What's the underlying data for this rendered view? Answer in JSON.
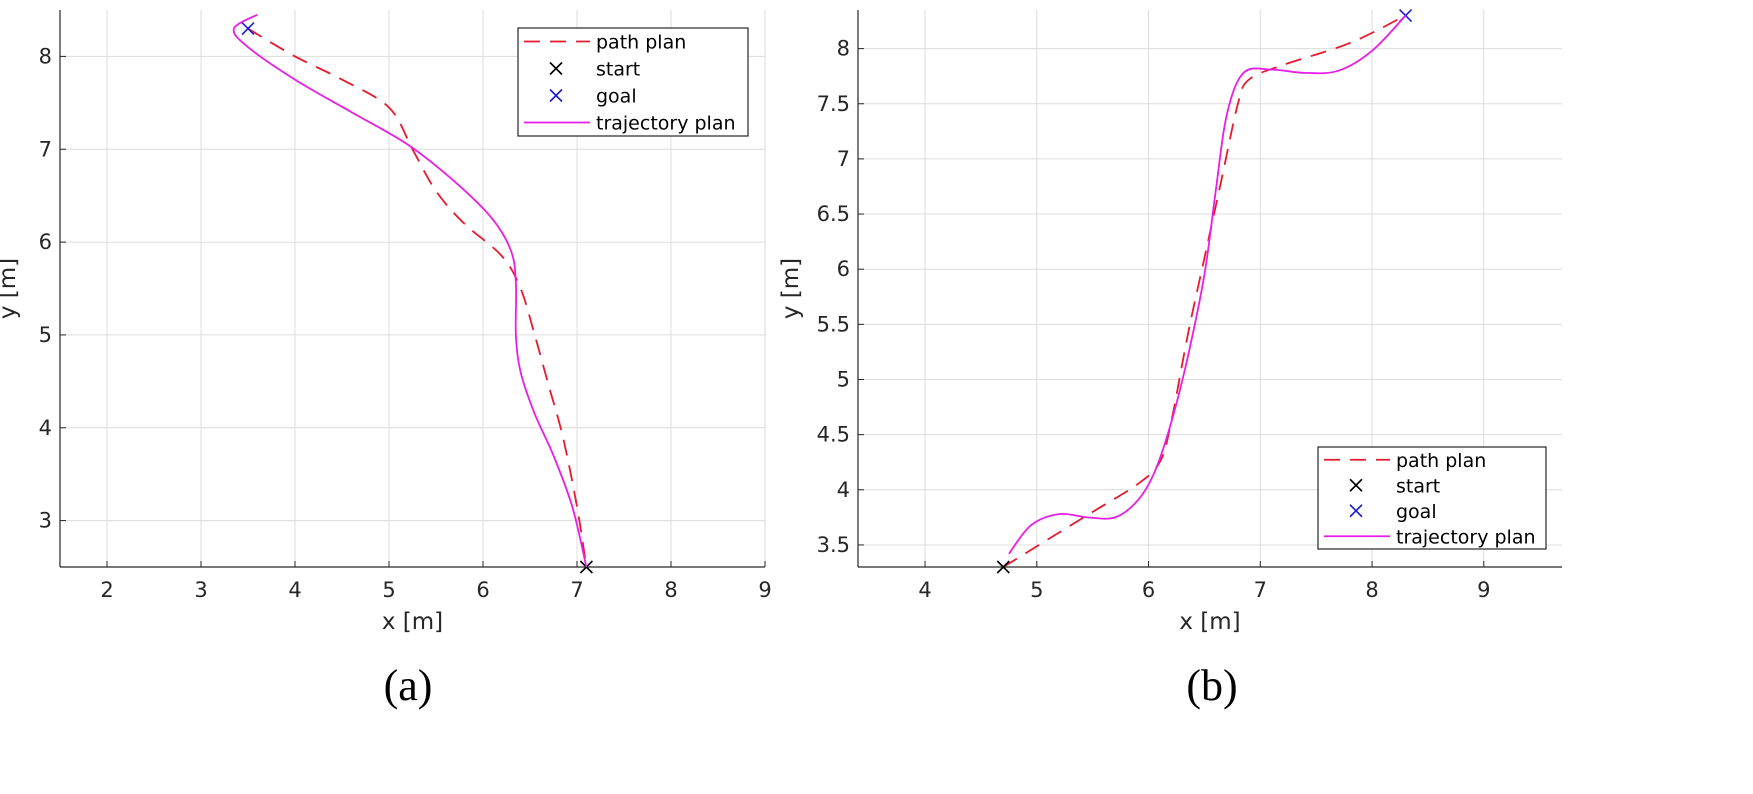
{
  "chart_data": [
    {
      "type": "line",
      "panel_label": "(a)",
      "xlabel": "x [m]",
      "ylabel": "y [m]",
      "xlim": [
        1.5,
        9
      ],
      "ylim": [
        2.5,
        8.5
      ],
      "xticks": [
        2,
        3,
        4,
        5,
        6,
        7,
        8,
        9
      ],
      "yticks": [
        3,
        4,
        5,
        6,
        7,
        8
      ],
      "grid": true,
      "legend_position": "top-right",
      "series": [
        {
          "name": "path plan",
          "color": "#e8192c",
          "style": "dashed",
          "x": [
            3.5,
            4.0,
            4.5,
            5.0,
            5.25,
            5.5,
            5.8,
            6.2,
            6.4,
            6.55,
            6.7,
            6.85,
            7.0,
            7.1
          ],
          "y": [
            8.3,
            8.0,
            7.75,
            7.45,
            7.0,
            6.55,
            6.2,
            5.85,
            5.5,
            5.0,
            4.45,
            3.9,
            3.15,
            2.5
          ]
        },
        {
          "name": "start",
          "color": "#000000",
          "style": "marker-x",
          "x": [
            7.1
          ],
          "y": [
            2.5
          ]
        },
        {
          "name": "goal",
          "color": "#1a1adb",
          "style": "marker-x",
          "x": [
            3.5
          ],
          "y": [
            8.3
          ]
        },
        {
          "name": "trajectory plan",
          "color": "#e81ee8",
          "style": "solid",
          "x": [
            3.6,
            3.35,
            3.5,
            4.0,
            4.6,
            5.2,
            5.7,
            6.1,
            6.3,
            6.35,
            6.35,
            6.4,
            6.55,
            6.75,
            6.95,
            7.1
          ],
          "y": [
            8.45,
            8.3,
            8.1,
            7.75,
            7.4,
            7.05,
            6.65,
            6.25,
            5.9,
            5.55,
            5.0,
            4.6,
            4.15,
            3.7,
            3.15,
            2.5
          ]
        }
      ]
    },
    {
      "type": "line",
      "panel_label": "(b)",
      "xlabel": "x [m]",
      "ylabel": "y [m]",
      "xlim": [
        3.4,
        9.7
      ],
      "ylim": [
        3.3,
        8.35
      ],
      "xticks": [
        4,
        5,
        6,
        7,
        8,
        9
      ],
      "yticks": [
        3.5,
        4,
        4.5,
        5,
        5.5,
        6,
        6.5,
        7,
        7.5,
        8
      ],
      "grid": true,
      "legend_position": "bottom-right",
      "series": [
        {
          "name": "path plan",
          "color": "#e8192c",
          "style": "dashed",
          "x": [
            4.7,
            5.1,
            5.5,
            5.9,
            6.1,
            6.2,
            6.35,
            6.5,
            6.65,
            6.8,
            6.9,
            7.2,
            7.8,
            8.3
          ],
          "y": [
            3.3,
            3.55,
            3.8,
            4.05,
            4.25,
            4.6,
            5.4,
            6.1,
            6.8,
            7.5,
            7.72,
            7.85,
            8.05,
            8.3
          ]
        },
        {
          "name": "start",
          "color": "#000000",
          "style": "marker-x",
          "x": [
            4.7
          ],
          "y": [
            3.3
          ]
        },
        {
          "name": "goal",
          "color": "#1a1adb",
          "style": "marker-x",
          "x": [
            8.3
          ],
          "y": [
            8.3
          ]
        },
        {
          "name": "trajectory plan",
          "color": "#e81ee8",
          "style": "solid",
          "x": [
            4.75,
            4.95,
            5.2,
            5.45,
            5.7,
            5.9,
            6.05,
            6.2,
            6.35,
            6.5,
            6.6,
            6.7,
            6.85,
            7.1,
            7.4,
            7.7,
            8.0,
            8.3
          ],
          "y": [
            3.42,
            3.68,
            3.78,
            3.75,
            3.75,
            3.9,
            4.15,
            4.6,
            5.2,
            5.95,
            6.7,
            7.4,
            7.78,
            7.81,
            7.78,
            7.8,
            7.98,
            8.3
          ]
        }
      ]
    }
  ]
}
